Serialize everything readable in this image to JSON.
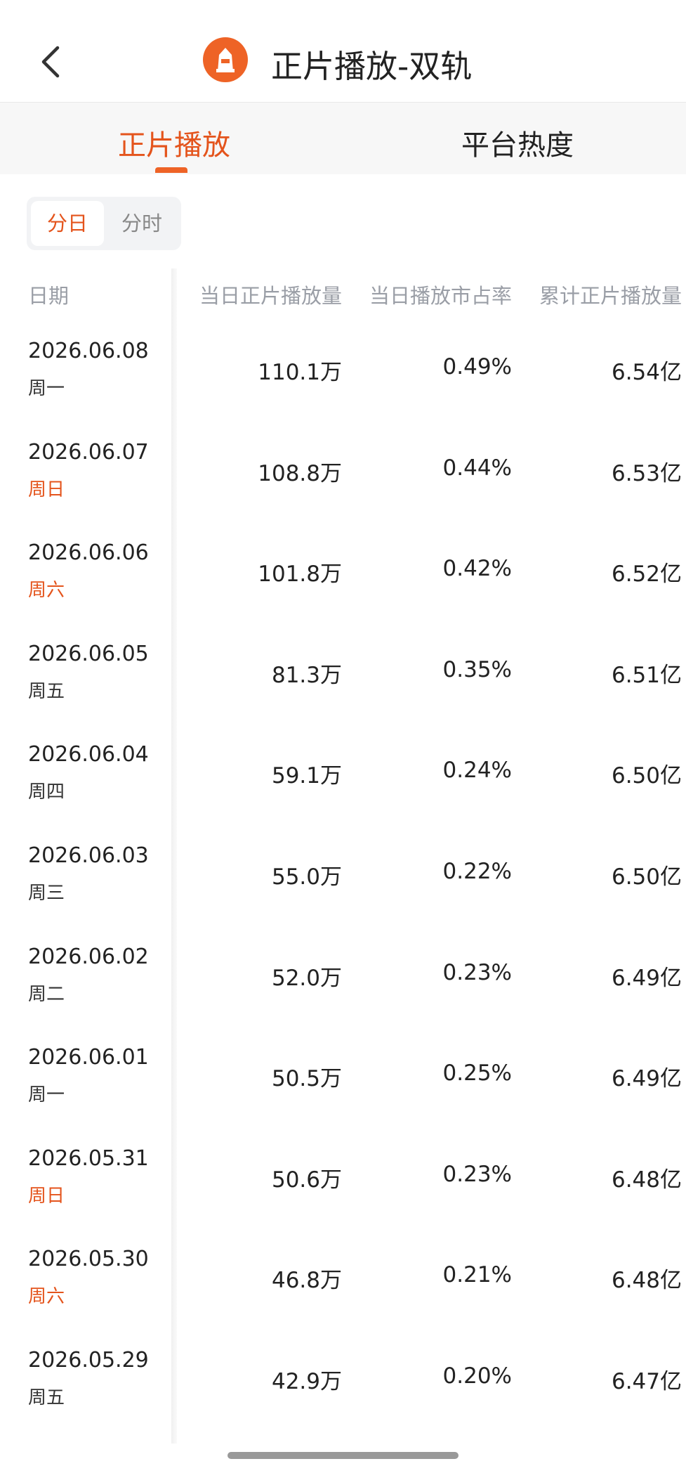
{
  "header": {
    "title": "正片播放-双轨"
  },
  "tabs": [
    "正片播放",
    "平台热度"
  ],
  "segments": [
    "分日",
    "分时"
  ],
  "table": {
    "columns": [
      "日期",
      "当日正片播放量",
      "当日播放市占率",
      "累计正片播放量"
    ],
    "rows": [
      {
        "date": "2026.06.08",
        "weekday": "周一",
        "weekday_color": "#333333",
        "daily": "110.1万",
        "share": "0.49%",
        "total": "6.54亿"
      },
      {
        "date": "2026.06.07",
        "weekday": "周日",
        "weekday_color": "#e4541c",
        "daily": "108.8万",
        "share": "0.44%",
        "total": "6.53亿"
      },
      {
        "date": "2026.06.06",
        "weekday": "周六",
        "weekday_color": "#e4541c",
        "daily": "101.8万",
        "share": "0.42%",
        "total": "6.52亿"
      },
      {
        "date": "2026.06.05",
        "weekday": "周五",
        "weekday_color": "#333333",
        "daily": "81.3万",
        "share": "0.35%",
        "total": "6.51亿"
      },
      {
        "date": "2026.06.04",
        "weekday": "周四",
        "weekday_color": "#333333",
        "daily": "59.1万",
        "share": "0.24%",
        "total": "6.50亿"
      },
      {
        "date": "2026.06.03",
        "weekday": "周三",
        "weekday_color": "#333333",
        "daily": "55.0万",
        "share": "0.22%",
        "total": "6.50亿"
      },
      {
        "date": "2026.06.02",
        "weekday": "周二",
        "weekday_color": "#333333",
        "daily": "52.0万",
        "share": "0.23%",
        "total": "6.49亿"
      },
      {
        "date": "2026.06.01",
        "weekday": "周一",
        "weekday_color": "#333333",
        "daily": "50.5万",
        "share": "0.25%",
        "total": "6.49亿"
      },
      {
        "date": "2026.05.31",
        "weekday": "周日",
        "weekday_color": "#e4541c",
        "daily": "50.6万",
        "share": "0.23%",
        "total": "6.48亿"
      },
      {
        "date": "2026.05.30",
        "weekday": "周六",
        "weekday_color": "#e4541c",
        "daily": "46.8万",
        "share": "0.21%",
        "total": "6.48亿"
      },
      {
        "date": "2026.05.29",
        "weekday": "周五",
        "weekday_color": "#333333",
        "daily": "42.9万",
        "share": "0.20%",
        "total": "6.47亿"
      }
    ]
  }
}
